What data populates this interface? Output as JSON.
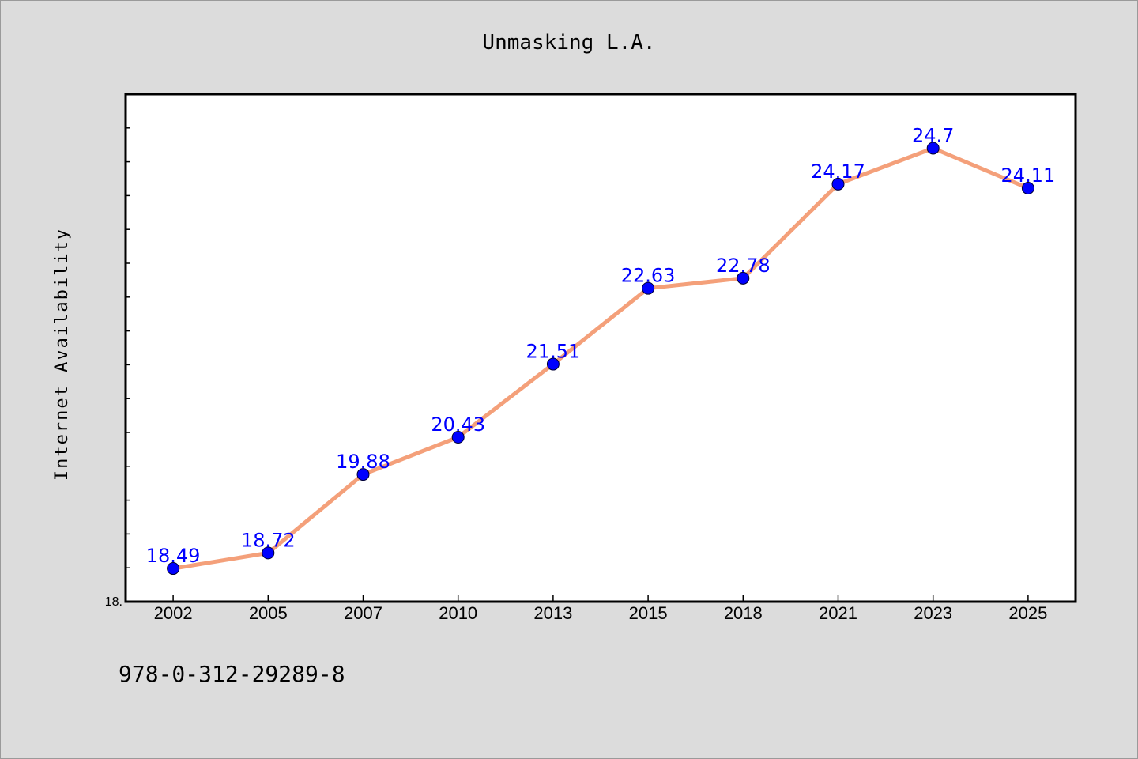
{
  "chart_data": {
    "type": "line",
    "title": "Unmasking L.A.",
    "xlabel": "",
    "ylabel": "Internet Availability",
    "categories": [
      "2002",
      "2005",
      "2007",
      "2010",
      "2013",
      "2015",
      "2018",
      "2021",
      "2023",
      "2025"
    ],
    "series": [
      {
        "values": [
          18.49,
          18.72,
          19.88,
          20.43,
          21.51,
          22.63,
          22.78,
          24.17,
          24.7,
          24.11
        ],
        "line_color": "#f4a07a",
        "marker_color": "#0000ff"
      }
    ],
    "data_labels": [
      "18.49",
      "18.72",
      "19.88",
      "20.43",
      "21.51",
      "22.63",
      "22.78",
      "24.17",
      "24.7",
      "24.11"
    ],
    "ylim": [
      18,
      25.5
    ],
    "y_tick_labels": [
      "18."
    ],
    "grid": false,
    "legend": "none"
  },
  "footer": {
    "isbn": "978-0-312-29289-8"
  },
  "colors": {
    "background": "#dcdcdc",
    "plot_area": "#ffffff",
    "line": "#f4a07a",
    "marker": "#0000ff",
    "label": "#0000ff"
  }
}
